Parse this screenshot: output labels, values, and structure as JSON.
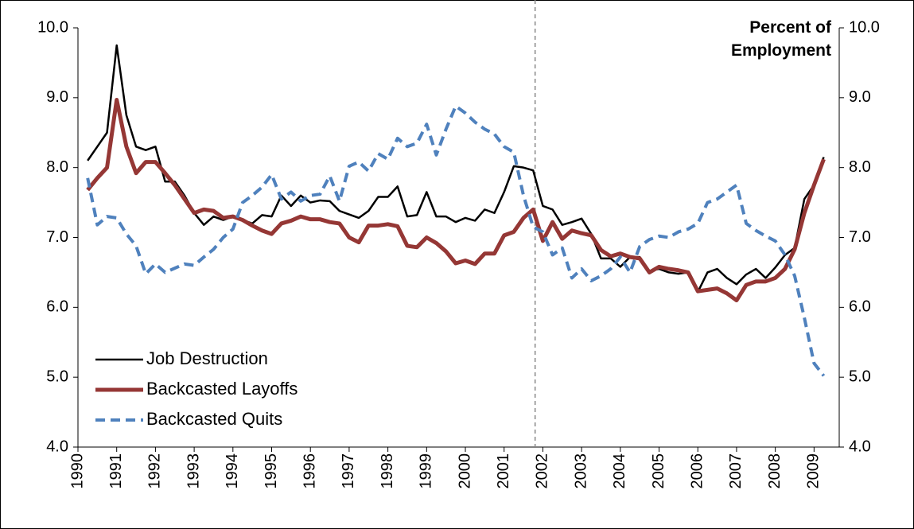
{
  "chart_data": {
    "type": "line",
    "y_label": "Percent of Employment",
    "x": [
      1990.25,
      1990.5,
      1990.75,
      1991,
      1991.25,
      1991.5,
      1991.75,
      1992,
      1992.25,
      1992.5,
      1992.75,
      1993,
      1993.25,
      1993.5,
      1993.75,
      1994,
      1994.25,
      1994.5,
      1994.75,
      1995,
      1995.25,
      1995.5,
      1995.75,
      1996,
      1996.25,
      1996.5,
      1996.75,
      1997,
      1997.25,
      1997.5,
      1997.75,
      1998,
      1998.25,
      1998.5,
      1998.75,
      1999,
      1999.25,
      1999.5,
      1999.75,
      2000,
      2000.25,
      2000.5,
      2000.75,
      2001,
      2001.25,
      2001.5,
      2001.75,
      2002,
      2002.25,
      2002.5,
      2002.75,
      2003,
      2003.25,
      2003.5,
      2003.75,
      2004,
      2004.25,
      2004.5,
      2004.75,
      2005,
      2005.25,
      2005.5,
      2005.75,
      2006,
      2006.25,
      2006.5,
      2006.75,
      2007,
      2007.25,
      2007.5,
      2007.75,
      2008,
      2008.25,
      2008.5,
      2008.75,
      2009,
      2009.25
    ],
    "series": [
      {
        "name": "Job Destruction",
        "color": "#000000",
        "style": "solid",
        "width": 2.5,
        "values": [
          8.1,
          8.3,
          8.5,
          9.75,
          8.75,
          8.3,
          8.25,
          8.3,
          7.8,
          7.8,
          7.6,
          7.35,
          7.18,
          7.3,
          7.25,
          7.3,
          7.25,
          7.2,
          7.32,
          7.3,
          7.6,
          7.45,
          7.6,
          7.5,
          7.53,
          7.52,
          7.38,
          7.33,
          7.28,
          7.38,
          7.58,
          7.58,
          7.73,
          7.3,
          7.32,
          7.65,
          7.3,
          7.3,
          7.22,
          7.28,
          7.24,
          7.4,
          7.35,
          7.65,
          8.02,
          8.0,
          7.96,
          7.45,
          7.4,
          7.18,
          7.22,
          7.27,
          7.05,
          6.7,
          6.7,
          6.58,
          6.72,
          6.72,
          6.52,
          6.55,
          6.5,
          6.48,
          6.5,
          6.22,
          6.5,
          6.55,
          6.42,
          6.33,
          6.47,
          6.55,
          6.42,
          6.57,
          6.75,
          6.85,
          7.55,
          7.75,
          8.15
        ]
      },
      {
        "name": "Backcasted Layoffs",
        "color": "#953735",
        "style": "solid",
        "width": 5,
        "values": [
          7.68,
          7.85,
          8.0,
          8.97,
          8.3,
          7.92,
          8.08,
          8.08,
          7.92,
          7.75,
          7.55,
          7.35,
          7.4,
          7.38,
          7.28,
          7.3,
          7.25,
          7.17,
          7.1,
          7.05,
          7.2,
          7.24,
          7.3,
          7.26,
          7.26,
          7.22,
          7.2,
          7.0,
          6.93,
          7.17,
          7.17,
          7.19,
          7.16,
          6.88,
          6.86,
          7.0,
          6.92,
          6.8,
          6.63,
          6.67,
          6.62,
          6.77,
          6.77,
          7.03,
          7.08,
          7.28,
          7.4,
          6.95,
          7.22,
          6.98,
          7.1,
          7.06,
          7.03,
          6.82,
          6.73,
          6.77,
          6.72,
          6.7,
          6.5,
          6.58,
          6.55,
          6.53,
          6.5,
          6.23,
          6.25,
          6.27,
          6.2,
          6.1,
          6.32,
          6.37,
          6.37,
          6.42,
          6.55,
          6.83,
          7.35,
          7.75,
          8.12
        ]
      },
      {
        "name": "Backcasted Quits",
        "color": "#4f81bd",
        "style": "dashed",
        "width": 4,
        "values": [
          7.85,
          7.18,
          7.3,
          7.28,
          7.05,
          6.88,
          6.48,
          6.62,
          6.5,
          6.56,
          6.62,
          6.6,
          6.72,
          6.83,
          7.0,
          7.12,
          7.5,
          7.6,
          7.72,
          7.9,
          7.55,
          7.65,
          7.52,
          7.6,
          7.62,
          7.88,
          7.52,
          8.02,
          8.08,
          7.95,
          8.2,
          8.12,
          8.42,
          8.3,
          8.35,
          8.62,
          8.18,
          8.55,
          8.88,
          8.78,
          8.65,
          8.55,
          8.48,
          8.3,
          8.22,
          7.6,
          7.15,
          7.08,
          6.75,
          6.85,
          6.42,
          6.55,
          6.38,
          6.45,
          6.55,
          6.72,
          6.5,
          6.87,
          6.97,
          7.02,
          7.0,
          7.08,
          7.12,
          7.2,
          7.5,
          7.55,
          7.65,
          7.75,
          7.2,
          7.1,
          7.02,
          6.95,
          6.75,
          6.45,
          5.85,
          5.2,
          5.02
        ]
      }
    ],
    "xlim": [
      1990,
      2009.65
    ],
    "xticks": [
      1990,
      1991,
      1992,
      1993,
      1994,
      1995,
      1996,
      1997,
      1998,
      1999,
      2000,
      2001,
      2002,
      2003,
      2004,
      2005,
      2006,
      2007,
      2008,
      2009
    ],
    "ylim": [
      4,
      10
    ],
    "yticks": [
      {
        "value": 4,
        "label": "4.0"
      },
      {
        "value": 5,
        "label": "5.0"
      },
      {
        "value": 6,
        "label": "6.0"
      },
      {
        "value": 7,
        "label": "7.0"
      },
      {
        "value": 8,
        "label": "8.0"
      },
      {
        "value": 9,
        "label": "9.0"
      },
      {
        "value": 10,
        "label": "10.0"
      }
    ],
    "y2lim": [
      4,
      10
    ],
    "y2ticks": [
      {
        "value": 4,
        "label": "4.0"
      },
      {
        "value": 5,
        "label": "5.0"
      },
      {
        "value": 6,
        "label": "6.0"
      },
      {
        "value": 7,
        "label": "7.0"
      },
      {
        "value": 8,
        "label": "8.0"
      },
      {
        "value": 9,
        "label": "9.0"
      },
      {
        "value": 10,
        "label": "10.0"
      }
    ],
    "vline": 2001.8,
    "grid": false,
    "legend": "lower-left"
  }
}
